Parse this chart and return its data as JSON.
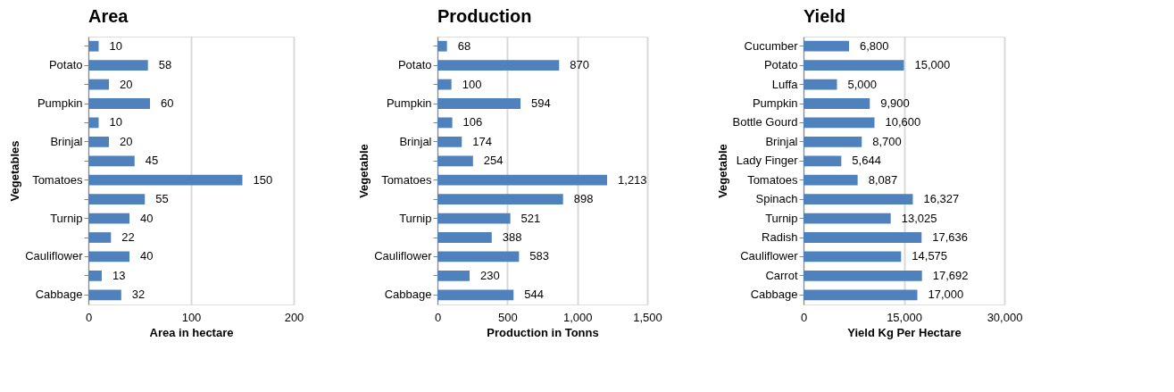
{
  "chart_data": [
    {
      "type": "bar",
      "orientation": "horizontal",
      "title": "Area",
      "xlabel": "Area in hectare",
      "ylabel": "Vegetables",
      "categories": [
        null,
        "Potato",
        null,
        "Pumpkin",
        null,
        "Brinjal",
        null,
        "Tomatoes",
        null,
        "Turnip",
        null,
        "Cauliflower",
        null,
        "Cabbage"
      ],
      "values": [
        10,
        58,
        20,
        60,
        10,
        20,
        45,
        150,
        55,
        40,
        22,
        40,
        13,
        32
      ],
      "color": "#4f81bd",
      "xlim": [
        0,
        200
      ],
      "xticks": [
        0,
        100,
        200
      ],
      "grid": "x",
      "value_labels": [
        "10",
        "58",
        "20",
        "60",
        "10",
        "20",
        "45",
        "150",
        "55",
        "40",
        "22",
        "40",
        "13",
        "32"
      ]
    },
    {
      "type": "bar",
      "orientation": "horizontal",
      "title": "Production",
      "xlabel": "Production in Tonns",
      "ylabel": "Vegetable",
      "categories": [
        null,
        "Potato",
        null,
        "Pumpkin",
        null,
        "Brinjal",
        null,
        "Tomatoes",
        null,
        "Turnip",
        null,
        "Cauliflower",
        null,
        "Cabbage"
      ],
      "values": [
        68,
        870,
        100,
        594,
        106,
        174,
        254,
        1213,
        898,
        521,
        388,
        583,
        230,
        544
      ],
      "color": "#4f81bd",
      "xlim": [
        0,
        1500
      ],
      "xticks": [
        0,
        500,
        {
          "value": 1000,
          "label": "1,000"
        },
        {
          "value": 1500,
          "label": "1,500"
        }
      ],
      "grid": "x",
      "value_labels": [
        "68",
        "870",
        "100",
        "594",
        "106",
        "174",
        "254",
        "1,213",
        "898",
        "521",
        "388",
        "583",
        "230",
        "544"
      ]
    },
    {
      "type": "bar",
      "orientation": "horizontal",
      "title": "Yield",
      "xlabel": "Yield Kg Per Hectare",
      "ylabel": "Vegetable",
      "categories": [
        "Cucumber",
        "Potato",
        "Luffa",
        "Pumpkin",
        "Bottle Gourd",
        "Brinjal",
        "Lady Finger",
        "Tomatoes",
        "Spinach",
        "Turnip",
        "Radish",
        "Cauliflower",
        "Carrot",
        "Cabbage"
      ],
      "values": [
        6800,
        15000,
        5000,
        9900,
        10600,
        8700,
        5644,
        8087,
        16327,
        13025,
        17636,
        14575,
        17692,
        17000
      ],
      "color": "#4f81bd",
      "xlim": [
        0,
        30000
      ],
      "xticks": [
        0,
        {
          "value": 15000,
          "label": "15,000"
        },
        {
          "value": 30000,
          "label": "30,000"
        }
      ],
      "grid": "x",
      "value_labels": [
        "6,800",
        "15,000",
        "5,000",
        "9,900",
        "10,600",
        "8,700",
        "5,644",
        "8,087",
        "16,327",
        "13,025",
        "17,636",
        "14,575",
        "17,692",
        "17,000"
      ]
    }
  ]
}
